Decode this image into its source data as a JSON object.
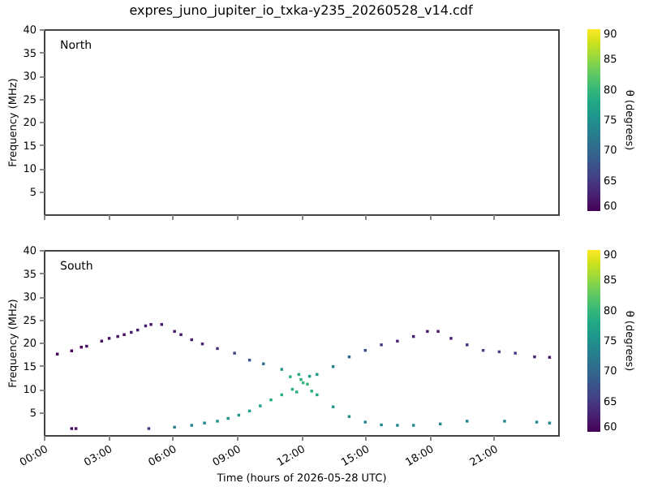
{
  "chart_data": [
    {
      "type": "scatter",
      "title": "expres_juno_jupiter_io_txka-y235_20260528_v14.cdf",
      "annotations": [
        "North"
      ],
      "ylabel": "Frequency (MHz)",
      "xlim": [
        0,
        24
      ],
      "xticks": [
        {
          "value": 0,
          "label": null
        },
        {
          "value": 3,
          "label": null
        },
        {
          "value": 6,
          "label": null
        },
        {
          "value": 9,
          "label": null
        },
        {
          "value": 12,
          "label": null
        },
        {
          "value": 15,
          "label": null
        },
        {
          "value": 18,
          "label": null
        },
        {
          "value": 21,
          "label": null
        }
      ],
      "ylim": [
        0,
        40
      ],
      "yticks": [
        5,
        10,
        15,
        20,
        25,
        30,
        35,
        40
      ],
      "tick_labels": "y",
      "clabel": "θ (degrees)",
      "clim": [
        60,
        90
      ],
      "cticks": [
        60,
        65,
        70,
        75,
        80,
        85,
        90
      ],
      "marker": "square",
      "grid": false
    },
    {
      "type": "scatter",
      "annotations": [
        "South"
      ],
      "xlabel": "Time (hours of 2026-05-28 UTC)",
      "ylabel": "Frequency (MHz)",
      "x": [
        0.63,
        1.3,
        1.75,
        2.0,
        2.7,
        3.05,
        3.45,
        3.75,
        4.08,
        4.38,
        4.75,
        5.0,
        5.5,
        6.1,
        6.4,
        6.9,
        7.4,
        8.1,
        8.9,
        9.6,
        10.25,
        11.1,
        11.5,
        11.9,
        12.4,
        12.75,
        13.5,
        14.25,
        15,
        15.75,
        16.5,
        17.25,
        17.9,
        18.4,
        19,
        19.75,
        20.5,
        21.25,
        22,
        22.9,
        23.6,
        1.3,
        1.5,
        4.9,
        6.1,
        6.9,
        7.5,
        8.1,
        8.6,
        9.1,
        9.6,
        10.1,
        10.6,
        11.1,
        11.6,
        11.8,
        12.0,
        12.1,
        12.3,
        12.5,
        12.75,
        13.5,
        14.25,
        15,
        15.75,
        16.5,
        17.25,
        18.5,
        19.75,
        21.5,
        23,
        23.6
      ],
      "values": [
        17.5,
        18.2,
        19.0,
        19.2,
        20.3,
        20.9,
        21.3,
        21.7,
        22.2,
        22.7,
        23.6,
        23.9,
        23.9,
        22.4,
        21.7,
        20.6,
        19.7,
        18.7,
        17.7,
        16.2,
        15.4,
        14.2,
        12.6,
        13.1,
        12.7,
        13.1,
        14.8,
        16.9,
        18.3,
        19.5,
        20.3,
        21.3,
        22.4,
        22.4,
        20.9,
        19.5,
        18.3,
        18.0,
        17.7,
        16.9,
        16.8,
        1.4,
        1.4,
        1.4,
        1.7,
        2.1,
        2.6,
        3.0,
        3.6,
        4.3,
        5.2,
        6.3,
        7.6,
        8.7,
        9.9,
        9.3,
        12.0,
        11.3,
        11.0,
        9.5,
        8.7,
        6.1,
        4.0,
        2.8,
        2.2,
        2.1,
        2.1,
        2.4,
        3.0,
        3.0,
        2.8,
        2.6
      ],
      "cvalues": [
        60,
        60,
        60,
        61,
        61,
        61,
        61,
        61,
        62,
        62,
        62,
        62,
        62,
        62,
        62,
        62,
        63,
        64,
        66,
        68,
        71,
        75,
        79,
        78,
        77,
        76,
        73,
        70,
        67,
        65,
        63,
        62,
        62,
        62,
        63,
        64,
        66,
        66,
        65,
        63,
        62,
        61,
        61,
        65,
        73,
        74,
        74,
        75,
        75,
        76,
        77,
        77,
        78,
        79,
        79,
        79,
        79,
        80,
        80,
        79,
        78,
        76,
        75,
        74,
        74,
        74,
        74,
        74,
        74,
        74,
        74,
        74
      ],
      "xlim": [
        0,
        24
      ],
      "xticks": [
        {
          "value": 0,
          "label": "00:00"
        },
        {
          "value": 3,
          "label": "03:00"
        },
        {
          "value": 6,
          "label": "06:00"
        },
        {
          "value": 9,
          "label": "09:00"
        },
        {
          "value": 12,
          "label": "12:00"
        },
        {
          "value": 15,
          "label": "15:00"
        },
        {
          "value": 18,
          "label": "18:00"
        },
        {
          "value": 21,
          "label": "21:00"
        }
      ],
      "ylim": [
        0,
        40
      ],
      "yticks": [
        5,
        10,
        15,
        20,
        25,
        30,
        35,
        40
      ],
      "clabel": "θ (degrees)",
      "clim": [
        60,
        90
      ],
      "cticks": [
        60,
        65,
        70,
        75,
        80,
        85,
        90
      ],
      "marker": "square",
      "grid": false
    }
  ]
}
